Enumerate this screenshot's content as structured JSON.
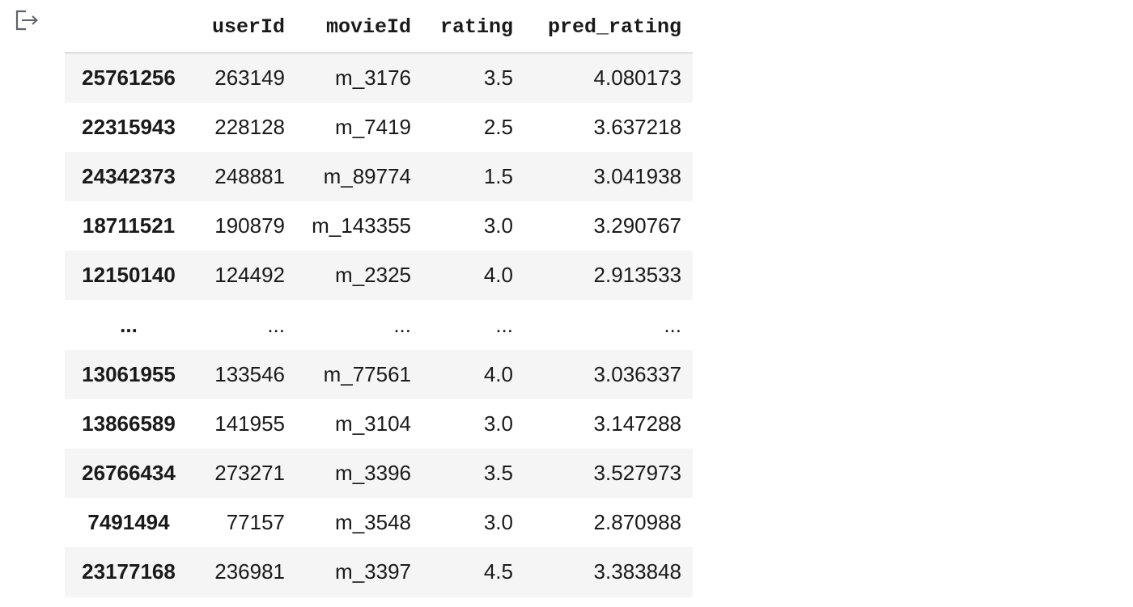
{
  "output": {
    "icon": "output-arrow-icon"
  },
  "table": {
    "columns": [
      "",
      "userId",
      "movieId",
      "rating",
      "pred_rating"
    ],
    "rows": [
      {
        "index": "25761256",
        "userId": "263149",
        "movieId": "m_3176",
        "rating": "3.5",
        "pred_rating": "4.080173"
      },
      {
        "index": "22315943",
        "userId": "228128",
        "movieId": "m_7419",
        "rating": "2.5",
        "pred_rating": "3.637218"
      },
      {
        "index": "24342373",
        "userId": "248881",
        "movieId": "m_89774",
        "rating": "1.5",
        "pred_rating": "3.041938"
      },
      {
        "index": "18711521",
        "userId": "190879",
        "movieId": "m_143355",
        "rating": "3.0",
        "pred_rating": "3.290767"
      },
      {
        "index": "12150140",
        "userId": "124492",
        "movieId": "m_2325",
        "rating": "4.0",
        "pred_rating": "2.913533"
      },
      {
        "index": "...",
        "userId": "...",
        "movieId": "...",
        "rating": "...",
        "pred_rating": "..."
      },
      {
        "index": "13061955",
        "userId": "133546",
        "movieId": "m_77561",
        "rating": "4.0",
        "pred_rating": "3.036337"
      },
      {
        "index": "13866589",
        "userId": "141955",
        "movieId": "m_3104",
        "rating": "3.0",
        "pred_rating": "3.147288"
      },
      {
        "index": "26766434",
        "userId": "273271",
        "movieId": "m_3396",
        "rating": "3.5",
        "pred_rating": "3.527973"
      },
      {
        "index": "7491494",
        "userId": "77157",
        "movieId": "m_3548",
        "rating": "3.0",
        "pred_rating": "2.870988"
      },
      {
        "index": "23177168",
        "userId": "236981",
        "movieId": "m_3397",
        "rating": "4.5",
        "pred_rating": "3.383848"
      }
    ]
  }
}
